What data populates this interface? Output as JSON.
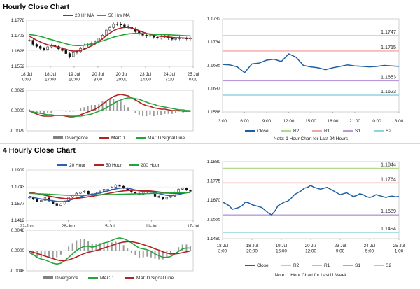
{
  "sections": [
    {
      "title": "Hourly Close Chart"
    },
    {
      "title": "4 Hourly Close Chart"
    }
  ],
  "chart_data": [
    {
      "id": "hourly_price",
      "type": "candlestick",
      "legend": [
        "20 Hr MA",
        "50 Hrs MA"
      ],
      "legend_colors": [
        "#b22222",
        "#22a63a"
      ],
      "yticks": [
        "1.1778",
        "1.1703",
        "1.1628",
        "1.1552"
      ],
      "ylim": [
        1.1552,
        1.1778
      ],
      "xticks": [
        "18 Jul\n0:00",
        "18 Jul\n17:00",
        "19 Jul\n10:00",
        "20 Jul\n3:00",
        "20 Jul\n20:00",
        "23 Jul\n14:00",
        "24 Jul\n7:00",
        "25 Jul\n0:00"
      ],
      "close": [
        1.168,
        1.166,
        1.165,
        1.164,
        1.1635,
        1.1648,
        1.1655,
        1.165,
        1.1638,
        1.163,
        1.1615,
        1.16,
        1.162,
        1.1625,
        1.164,
        1.1655,
        1.166,
        1.1665,
        1.1672,
        1.169,
        1.1705,
        1.173,
        1.1742,
        1.1758,
        1.176,
        1.1755,
        1.1748,
        1.1745,
        1.1735,
        1.1722,
        1.171,
        1.1705,
        1.17,
        1.1703,
        1.1695,
        1.1692,
        1.1698,
        1.1702,
        1.169,
        1.1685,
        1.1688,
        1.1692,
        1.169,
        1.1688,
        1.169
      ],
      "ma20": [
        1.17,
        1.169,
        1.168,
        1.1672,
        1.1664,
        1.1658,
        1.1654,
        1.165,
        1.1646,
        1.1641,
        1.1636,
        1.163,
        1.1627,
        1.1627,
        1.163,
        1.1636,
        1.1644,
        1.1653,
        1.1663,
        1.1675,
        1.1688,
        1.1702,
        1.1715,
        1.1727,
        1.1735,
        1.174,
        1.1743,
        1.1743,
        1.174,
        1.1734,
        1.1727,
        1.172,
        1.1714,
        1.1709,
        1.1705,
        1.1701,
        1.1699,
        1.1698,
        1.1696,
        1.1694,
        1.1692,
        1.1692,
        1.1691,
        1.169,
        1.169
      ],
      "ma50": [
        1.1708,
        1.1706,
        1.1703,
        1.1699,
        1.1694,
        1.1688,
        1.1683,
        1.1678,
        1.1673,
        1.1668,
        1.1663,
        1.1658,
        1.1655,
        1.1654,
        1.1654,
        1.1656,
        1.1659,
        1.1663,
        1.1667,
        1.1672,
        1.1677,
        1.1683,
        1.1689,
        1.1695,
        1.17,
        1.1704,
        1.1708,
        1.1711,
        1.1713,
        1.1714,
        1.1714,
        1.1713,
        1.1712,
        1.1711,
        1.171,
        1.1709,
        1.1708,
        1.1708,
        1.1707,
        1.1706,
        1.1705,
        1.1704,
        1.1703,
        1.1702,
        1.1702
      ]
    },
    {
      "id": "hourly_macd",
      "type": "line+bar",
      "legend": [
        "Divergence",
        "MACD",
        "MACD Signal Line"
      ],
      "legend_colors": [
        "#808080",
        "#b22222",
        "#22a63a"
      ],
      "yticks": [
        "0.0029",
        "0.0000",
        "-0.0029"
      ],
      "ylim": [
        -0.0029,
        0.0029
      ],
      "macd": [
        0.0,
        -0.0003,
        -0.0005,
        -0.0007,
        -0.0008,
        -0.0008,
        -0.0008,
        -0.0007,
        -0.0007,
        -0.0007,
        -0.0008,
        -0.0009,
        -0.0009,
        -0.0008,
        -0.0006,
        -0.0004,
        -0.0002,
        0.0,
        0.0002,
        0.0005,
        0.0009,
        0.0013,
        0.0017,
        0.002,
        0.0022,
        0.0023,
        0.0022,
        0.0021,
        0.0018,
        0.0015,
        0.0012,
        0.0009,
        0.0007,
        0.0006,
        0.0004,
        0.0003,
        0.0002,
        0.0002,
        0.0001,
        0.0,
        0.0,
        0.0,
        -0.0001,
        -0.0001,
        -0.0001
      ],
      "signal": [
        -0.0001,
        -0.0002,
        -0.0003,
        -0.0004,
        -0.0005,
        -0.0006,
        -0.0006,
        -0.0007,
        -0.0007,
        -0.0007,
        -0.0007,
        -0.0008,
        -0.0008,
        -0.0008,
        -0.0008,
        -0.0007,
        -0.0006,
        -0.0005,
        -0.0003,
        -0.0001,
        0.0001,
        0.0004,
        0.0007,
        0.001,
        0.0013,
        0.0015,
        0.0017,
        0.0018,
        0.0018,
        0.0017,
        0.0016,
        0.0014,
        0.0012,
        0.001,
        0.0009,
        0.0007,
        0.0006,
        0.0005,
        0.0004,
        0.0003,
        0.0002,
        0.0001,
        0.0001,
        0.0,
        0.0
      ]
    },
    {
      "id": "hourly_levels",
      "type": "line",
      "yticks": [
        "1.1782",
        "1.1734",
        "1.1685",
        "1.1637",
        "1.1588"
      ],
      "ylim": [
        1.1588,
        1.1782
      ],
      "xticks": [
        "3:00",
        "6:00",
        "9:00",
        "12:00",
        "15:00",
        "18:00",
        "21:00",
        "0:00",
        "3:00"
      ],
      "close": [
        1.1687,
        1.1686,
        1.1682,
        1.167,
        1.1688,
        1.169,
        1.1696,
        1.1698,
        1.1693,
        1.1709,
        1.1702,
        1.1685,
        1.1682,
        1.168,
        1.1676,
        1.168,
        1.1683,
        1.1686,
        1.1684,
        1.1683,
        1.1682,
        1.1683,
        1.1685,
        1.1684,
        1.1683
      ],
      "levels": [
        {
          "name": "R2",
          "value": 1.1747,
          "label": "1.1747",
          "color": "#b5d98c"
        },
        {
          "name": "R1",
          "value": 1.1715,
          "label": "1.1715",
          "color": "#f2a7a7"
        },
        {
          "name": "S1",
          "value": 1.1653,
          "label": "1.1653",
          "color": "#b79ad9"
        },
        {
          "name": "S2",
          "value": 1.1623,
          "label": "1.1623",
          "color": "#8fd4dd"
        }
      ],
      "legend": [
        "Close",
        "R2",
        "R1",
        "S1",
        "S2"
      ],
      "legend_colors": [
        "#1f5fa0",
        "#b5d98c",
        "#f2a7a7",
        "#b79ad9",
        "#8fd4dd"
      ],
      "note": "Note: 1 Hour Chart for Last 24 Hours"
    },
    {
      "id": "four_hourly_price",
      "type": "candlestick",
      "legend": [
        "20 Hour",
        "50 Hour",
        "200 Hour"
      ],
      "legend_colors": [
        "#2f5fb3",
        "#b22222",
        "#22a63a"
      ],
      "yticks": [
        "1.1909",
        "1.1743",
        "1.1577",
        "1.1412"
      ],
      "ylim": [
        1.1412,
        1.1909
      ],
      "xticks": [
        "22-Jun",
        "28-Jun",
        "5-Jul",
        "11-Jul",
        "17-Jul"
      ],
      "close": [
        1.164,
        1.162,
        1.16,
        1.161,
        1.1635,
        1.1605,
        1.158,
        1.156,
        1.1575,
        1.16,
        1.164,
        1.166,
        1.168,
        1.169,
        1.17,
        1.1675,
        1.166,
        1.168,
        1.17,
        1.172,
        1.172,
        1.174,
        1.176,
        1.175,
        1.173,
        1.171,
        1.169,
        1.168,
        1.167,
        1.169,
        1.17,
        1.169,
        1.165,
        1.164,
        1.162,
        1.164,
        1.165,
        1.169,
        1.172,
        1.173,
        1.171,
        1.17
      ],
      "ma20": [
        1.165,
        1.164,
        1.163,
        1.1623,
        1.1618,
        1.1612,
        1.1606,
        1.16,
        1.1598,
        1.16,
        1.1608,
        1.162,
        1.1633,
        1.1645,
        1.1657,
        1.1665,
        1.167,
        1.1676,
        1.1684,
        1.1694,
        1.1703,
        1.1713,
        1.1723,
        1.173,
        1.1733,
        1.173,
        1.1722,
        1.1712,
        1.1703,
        1.1698,
        1.1696,
        1.1693,
        1.1687,
        1.1678,
        1.1668,
        1.166,
        1.1656,
        1.166,
        1.1668,
        1.1678,
        1.1686,
        1.169
      ],
      "ma50": [
        1.169,
        1.1683,
        1.1675,
        1.1667,
        1.166,
        1.1652,
        1.1645,
        1.1638,
        1.1632,
        1.1628,
        1.1626,
        1.1627,
        1.163,
        1.1634,
        1.1639,
        1.1645,
        1.1651,
        1.1657,
        1.1664,
        1.1671,
        1.1678,
        1.1685,
        1.1692,
        1.1698,
        1.1703,
        1.1707,
        1.1709,
        1.171,
        1.1709,
        1.1707,
        1.1705,
        1.1702,
        1.1698,
        1.1693,
        1.1688,
        1.1683,
        1.168,
        1.1679,
        1.168,
        1.1682,
        1.1685,
        1.1688
      ],
      "ma200": [
        1.168,
        1.1678,
        1.1676,
        1.1674,
        1.1672,
        1.167,
        1.1668,
        1.1666,
        1.1664,
        1.1662,
        1.1661,
        1.166,
        1.166,
        1.166,
        1.1661,
        1.1662,
        1.1663,
        1.1664,
        1.1665,
        1.1666,
        1.1667,
        1.1668,
        1.1669,
        1.167,
        1.1671,
        1.1672,
        1.1673,
        1.1674,
        1.1675,
        1.1676,
        1.1677,
        1.1678,
        1.1679,
        1.168,
        1.1681,
        1.1682,
        1.1683,
        1.1684,
        1.1685,
        1.1686,
        1.1687,
        1.1688
      ]
    },
    {
      "id": "four_hourly_macd",
      "type": "line+bar",
      "legend": [
        "Divergence",
        "MACD",
        "MACD Signal Line"
      ],
      "legend_colors": [
        "#808080",
        "#22a63a",
        "#b22222"
      ],
      "yticks": [
        "0.0048",
        "0.0000",
        "-0.0048"
      ],
      "ylim": [
        -0.0048,
        0.0048
      ],
      "macd": [
        -0.0005,
        -0.001,
        -0.0016,
        -0.002,
        -0.0022,
        -0.0026,
        -0.003,
        -0.0032,
        -0.003,
        -0.0024,
        -0.0016,
        -0.0008,
        0.0,
        0.0006,
        0.001,
        0.001,
        0.0008,
        0.001,
        0.0014,
        0.0018,
        0.002,
        0.0024,
        0.0028,
        0.003,
        0.0028,
        0.0024,
        0.0018,
        0.0012,
        0.0006,
        0.0004,
        0.0002,
        -0.0002,
        -0.0008,
        -0.0012,
        -0.0016,
        -0.0016,
        -0.0014,
        -0.0008,
        -0.0002,
        0.0004,
        0.0006,
        0.0006
      ],
      "signal": [
        -0.0002,
        -0.0004,
        -0.0007,
        -0.001,
        -0.0013,
        -0.0016,
        -0.0019,
        -0.0022,
        -0.0024,
        -0.0024,
        -0.0022,
        -0.0019,
        -0.0015,
        -0.0011,
        -0.0007,
        -0.0004,
        -0.0002,
        0.0,
        0.0003,
        0.0006,
        0.0009,
        0.0012,
        0.0015,
        0.0018,
        0.002,
        0.0021,
        0.0021,
        0.0019,
        0.0017,
        0.0014,
        0.0011,
        0.0008,
        0.0004,
        0.0001,
        -0.0003,
        -0.0006,
        -0.0008,
        -0.0008,
        -0.0007,
        -0.0005,
        -0.0003,
        -0.0001
      ]
    },
    {
      "id": "four_hourly_levels",
      "type": "line",
      "yticks": [
        "1.1880",
        "1.1775",
        "1.1670",
        "1.1565",
        "1.1460"
      ],
      "ylim": [
        1.146,
        1.188
      ],
      "xticks": [
        "18 Jul\n3:00",
        "18 Jul\n20:00",
        "19 Jul\n16:00",
        "20 Jul\n12:00",
        "23 Jul\n9:00",
        "24 Jul\n5:00",
        "25 Jul\n1:00"
      ],
      "close": [
        1.166,
        1.165,
        1.164,
        1.162,
        1.1625,
        1.163,
        1.164,
        1.166,
        1.1655,
        1.1645,
        1.164,
        1.1635,
        1.163,
        1.1615,
        1.16,
        1.159,
        1.161,
        1.164,
        1.165,
        1.166,
        1.1665,
        1.168,
        1.17,
        1.171,
        1.172,
        1.1735,
        1.174,
        1.175,
        1.174,
        1.1735,
        1.173,
        1.1735,
        1.174,
        1.173,
        1.172,
        1.171,
        1.17,
        1.1705,
        1.171,
        1.17,
        1.169,
        1.1695,
        1.1705,
        1.17,
        1.169,
        1.1685,
        1.169,
        1.17,
        1.1695,
        1.169,
        1.1685,
        1.169,
        1.1692,
        1.1688,
        1.169
      ],
      "levels": [
        {
          "name": "R2",
          "value": 1.1844,
          "label": "1.1844",
          "color": "#b5d98c"
        },
        {
          "name": "R1",
          "value": 1.1764,
          "label": "1.1764",
          "color": "#f2a7a7"
        },
        {
          "name": "S1",
          "value": 1.1589,
          "label": "1.1589",
          "color": "#b79ad9"
        },
        {
          "name": "S2",
          "value": 1.1494,
          "label": "1.1494",
          "color": "#8fd4dd"
        }
      ],
      "legend": [
        "Close",
        "R2",
        "R1",
        "S1",
        "S2"
      ],
      "legend_colors": [
        "#1f5fa0",
        "#b5d98c",
        "#f2a7a7",
        "#b79ad9",
        "#8fd4dd"
      ],
      "note": "Note: 1 Hour Chart for Last11 Week"
    }
  ]
}
